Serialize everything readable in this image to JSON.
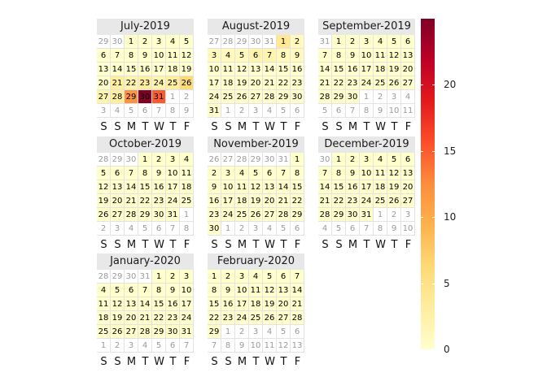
{
  "chart_data": {
    "type": "heatmap",
    "title": "",
    "weekday_labels": [
      "S",
      "S",
      "M",
      "T",
      "W",
      "T",
      "F"
    ],
    "color_scale": {
      "min": 0,
      "max": 25,
      "ticks": [
        0,
        5,
        10,
        15,
        20
      ],
      "tick_labels": [
        "0",
        "5",
        "10",
        "15",
        "20"
      ],
      "colors": [
        "#ffffcc",
        "#ffeda0",
        "#fed976",
        "#feb24c",
        "#fd8d3c",
        "#fc4e2a",
        "#e31a1c",
        "#bd0026",
        "#800026"
      ]
    },
    "months": [
      {
        "label": "July-2019",
        "year": 2019,
        "month": 7,
        "values": {
          "21": 3,
          "22": 2,
          "23": 3,
          "24": 2,
          "25": 3,
          "26": 6,
          "27": 2,
          "28": 3,
          "29": 12,
          "30": 25,
          "31": 15
        }
      },
      {
        "label": "August-2019",
        "year": 2019,
        "month": 8,
        "values": {
          "1": 4,
          "2": 1,
          "3": 1,
          "4": 1,
          "5": 1,
          "6": 2,
          "7": 2,
          "8": 1,
          "9": 1
        }
      },
      {
        "label": "September-2019",
        "year": 2019,
        "month": 9,
        "values": {}
      },
      {
        "label": "October-2019",
        "year": 2019,
        "month": 10,
        "values": {}
      },
      {
        "label": "November-2019",
        "year": 2019,
        "month": 11,
        "values": {}
      },
      {
        "label": "December-2019",
        "year": 2019,
        "month": 12,
        "values": {}
      },
      {
        "label": "January-2020",
        "year": 2020,
        "month": 1,
        "values": {}
      },
      {
        "label": "February-2020",
        "year": 2020,
        "month": 2,
        "values": {}
      }
    ]
  }
}
